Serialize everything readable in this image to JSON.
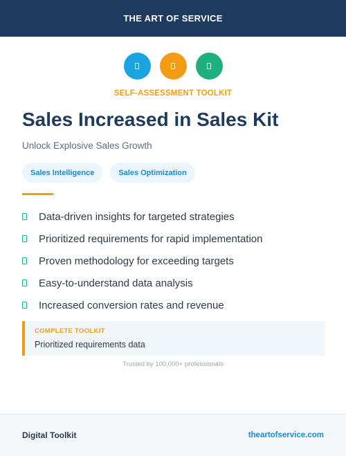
{
  "header": {
    "title": "THE ART OF SERVICE"
  },
  "icons": [
    {
      "name": "doc-icon",
      "color": "#1aa3e0"
    },
    {
      "name": "doc-icon",
      "color": "#f39c12"
    },
    {
      "name": "doc-icon",
      "color": "#1fb07f"
    }
  ],
  "kicker": "SELF-ASSESSMENT TOOLKIT",
  "title": "Sales Increased in Sales Kit",
  "subtitle": "Unlock Explosive Sales Growth",
  "tags": [
    "Sales Intelligence",
    "Sales Optimization"
  ],
  "features": [
    "Data-driven insights for targeted strategies",
    "Prioritized requirements for rapid implementation",
    "Proven methodology for exceeding targets",
    "Easy-to-understand data analysis",
    "Increased conversion rates and revenue"
  ],
  "callout": {
    "label": "COMPLETE TOOLKIT",
    "text": "Prioritized requirements data"
  },
  "trusted": "Trusted by 100,000+ professionals",
  "footer": {
    "left": "Digital Toolkit",
    "right": "theartofservice.com"
  },
  "colors": {
    "navy": "#1f3a5f",
    "accent": "#f39c12",
    "blue": "#1aa3e0",
    "green": "#1fb07f"
  }
}
